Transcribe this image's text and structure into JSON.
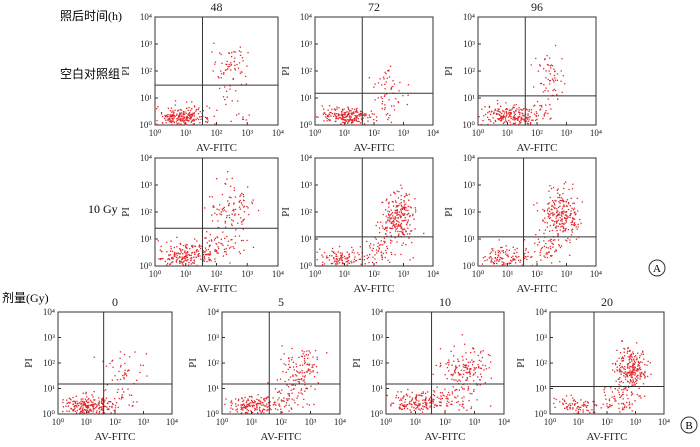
{
  "figure": {
    "row_header": "照后时间(h)",
    "dose_header": "剂量(Gy)",
    "panel_a_label": "A",
    "panel_b_label": "B",
    "colors": {
      "dots": "#e0262a",
      "axes": "#333333",
      "quadrant": "#333333"
    }
  },
  "chart_data": [
    {
      "type": "scatter",
      "panel": "A",
      "row_label": "空白对照组",
      "title": "48",
      "xlabel": "AV-FITC",
      "ylabel": "PI",
      "xscale": "log",
      "yscale": "log",
      "xlim": [
        1,
        10000
      ],
      "ylim": [
        1,
        10000
      ],
      "xticks": [
        "10^0",
        "10^1",
        "10^2",
        "10^3",
        "10^4"
      ],
      "yticks": [
        "10^0",
        "10^1",
        "10^2",
        "10^3",
        "10^4"
      ],
      "quadrant": {
        "x": 35,
        "y": 30
      },
      "clusters": [
        {
          "cx": 8,
          "cy": 2,
          "sx": 0.45,
          "sy": 0.18,
          "n": 230
        },
        {
          "cx": 300,
          "cy": 120,
          "sx": 0.3,
          "sy": 0.5,
          "n": 70
        },
        {
          "cx": 600,
          "cy": 2.5,
          "sx": 0.3,
          "sy": 0.25,
          "n": 10
        }
      ]
    },
    {
      "type": "scatter",
      "panel": "A",
      "row_label": "空白对照组",
      "title": "72",
      "xlabel": "AV-FITC",
      "ylabel": "PI",
      "xscale": "log",
      "yscale": "log",
      "xlim": [
        1,
        10000
      ],
      "ylim": [
        1,
        10000
      ],
      "xticks": [
        "10^0",
        "10^1",
        "10^2",
        "10^3",
        "10^4"
      ],
      "yticks": [
        "10^0",
        "10^1",
        "10^2",
        "10^3",
        "10^4"
      ],
      "quadrant": {
        "x": 40,
        "y": 15
      },
      "clusters": [
        {
          "cx": 12,
          "cy": 2,
          "sx": 0.45,
          "sy": 0.18,
          "n": 220
        },
        {
          "cx": 300,
          "cy": 30,
          "sx": 0.3,
          "sy": 0.45,
          "n": 45
        },
        {
          "cx": 300,
          "cy": 3,
          "sx": 0.3,
          "sy": 0.25,
          "n": 15
        }
      ]
    },
    {
      "type": "scatter",
      "panel": "A",
      "row_label": "空白对照组",
      "title": "96",
      "xlabel": "AV-FITC",
      "ylabel": "PI",
      "xscale": "log",
      "yscale": "log",
      "xlim": [
        1,
        10000
      ],
      "ylim": [
        1,
        10000
      ],
      "xticks": [
        "10^0",
        "10^1",
        "10^2",
        "10^3",
        "10^4"
      ],
      "yticks": [
        "10^0",
        "10^1",
        "10^2",
        "10^3",
        "10^4"
      ],
      "quadrant": {
        "x": 40,
        "y": 12
      },
      "clusters": [
        {
          "cx": 12,
          "cy": 2.2,
          "sx": 0.45,
          "sy": 0.2,
          "n": 220
        },
        {
          "cx": 300,
          "cy": 60,
          "sx": 0.3,
          "sy": 0.45,
          "n": 55
        },
        {
          "cx": 200,
          "cy": 4,
          "sx": 0.35,
          "sy": 0.25,
          "n": 20
        }
      ]
    },
    {
      "type": "scatter",
      "panel": "A",
      "row_label": "10 Gy",
      "title": "",
      "xlabel": "AV-FITC",
      "ylabel": "PI",
      "xscale": "log",
      "yscale": "log",
      "xlim": [
        1,
        10000
      ],
      "ylim": [
        1,
        10000
      ],
      "xticks": [
        "10^0",
        "10^1",
        "10^2",
        "10^3",
        "10^4"
      ],
      "yticks": [
        "10^0",
        "10^1",
        "10^2",
        "10^3",
        "10^4"
      ],
      "quadrant": {
        "x": 35,
        "y": 25
      },
      "clusters": [
        {
          "cx": 10,
          "cy": 2.5,
          "sx": 0.45,
          "sy": 0.22,
          "n": 200
        },
        {
          "cx": 300,
          "cy": 120,
          "sx": 0.35,
          "sy": 0.5,
          "n": 100
        },
        {
          "cx": 150,
          "cy": 6,
          "sx": 0.35,
          "sy": 0.3,
          "n": 60
        }
      ]
    },
    {
      "type": "scatter",
      "panel": "A",
      "row_label": "10 Gy",
      "title": "",
      "xlabel": "AV-FITC",
      "ylabel": "PI",
      "xscale": "log",
      "yscale": "log",
      "xlim": [
        1,
        10000
      ],
      "ylim": [
        1,
        10000
      ],
      "xticks": [
        "10^0",
        "10^1",
        "10^2",
        "10^3",
        "10^4"
      ],
      "yticks": [
        "10^0",
        "10^1",
        "10^2",
        "10^3",
        "10^4"
      ],
      "quadrant": {
        "x": 40,
        "y": 12
      },
      "clusters": [
        {
          "cx": 8,
          "cy": 2,
          "sx": 0.4,
          "sy": 0.2,
          "n": 110
        },
        {
          "cx": 700,
          "cy": 60,
          "sx": 0.3,
          "sy": 0.45,
          "n": 230
        },
        {
          "cx": 200,
          "cy": 4,
          "sx": 0.35,
          "sy": 0.3,
          "n": 60
        }
      ]
    },
    {
      "type": "scatter",
      "panel": "A",
      "row_label": "10 Gy",
      "title": "",
      "xlabel": "AV-FITC",
      "ylabel": "PI",
      "xscale": "log",
      "yscale": "log",
      "xlim": [
        1,
        10000
      ],
      "ylim": [
        1,
        10000
      ],
      "xticks": [
        "10^0",
        "10^1",
        "10^2",
        "10^3",
        "10^4"
      ],
      "yticks": [
        "10^0",
        "10^1",
        "10^2",
        "10^3",
        "10^4"
      ],
      "quadrant": {
        "x": 35,
        "y": 12
      },
      "clusters": [
        {
          "cx": 8,
          "cy": 2,
          "sx": 0.4,
          "sy": 0.2,
          "n": 110
        },
        {
          "cx": 700,
          "cy": 80,
          "sx": 0.3,
          "sy": 0.45,
          "n": 230
        },
        {
          "cx": 200,
          "cy": 4,
          "sx": 0.35,
          "sy": 0.3,
          "n": 60
        }
      ]
    },
    {
      "type": "scatter",
      "panel": "B",
      "title": "0",
      "xlabel": "AV-FITC",
      "ylabel": "PI",
      "xscale": "log",
      "yscale": "log",
      "xlim": [
        1,
        10000
      ],
      "ylim": [
        1,
        10000
      ],
      "xticks": [
        "10^0",
        "10^1",
        "10^2",
        "10^3",
        "10^4"
      ],
      "yticks": [
        "10^0",
        "10^1",
        "10^2",
        "10^3",
        "10^4"
      ],
      "quadrant": {
        "x": 40,
        "y": 15
      },
      "clusters": [
        {
          "cx": 10,
          "cy": 2,
          "sx": 0.45,
          "sy": 0.2,
          "n": 230
        },
        {
          "cx": 200,
          "cy": 50,
          "sx": 0.35,
          "sy": 0.45,
          "n": 45
        },
        {
          "cx": 200,
          "cy": 4,
          "sx": 0.3,
          "sy": 0.25,
          "n": 15
        }
      ]
    },
    {
      "type": "scatter",
      "panel": "B",
      "title": "5",
      "xlabel": "AV-FITC",
      "ylabel": "PI",
      "xscale": "log",
      "yscale": "log",
      "xlim": [
        1,
        10000
      ],
      "ylim": [
        1,
        10000
      ],
      "xticks": [
        "10^0",
        "10^1",
        "10^2",
        "10^3",
        "10^4"
      ],
      "yticks": [
        "10^0",
        "10^1",
        "10^2",
        "10^3",
        "10^4"
      ],
      "quadrant": {
        "x": 40,
        "y": 15
      },
      "clusters": [
        {
          "cx": 12,
          "cy": 2,
          "sx": 0.45,
          "sy": 0.2,
          "n": 170
        },
        {
          "cx": 400,
          "cy": 60,
          "sx": 0.35,
          "sy": 0.45,
          "n": 110
        },
        {
          "cx": 200,
          "cy": 4,
          "sx": 0.35,
          "sy": 0.3,
          "n": 50
        }
      ]
    },
    {
      "type": "scatter",
      "panel": "B",
      "title": "10",
      "xlabel": "AV-FITC",
      "ylabel": "PI",
      "xscale": "log",
      "yscale": "log",
      "xlim": [
        1,
        10000
      ],
      "ylim": [
        1,
        10000
      ],
      "xticks": [
        "10^0",
        "10^1",
        "10^2",
        "10^3",
        "10^4"
      ],
      "yticks": [
        "10^0",
        "10^1",
        "10^2",
        "10^3",
        "10^4"
      ],
      "quadrant": {
        "x": 35,
        "y": 15
      },
      "clusters": [
        {
          "cx": 10,
          "cy": 2.5,
          "sx": 0.45,
          "sy": 0.2,
          "n": 150
        },
        {
          "cx": 500,
          "cy": 60,
          "sx": 0.35,
          "sy": 0.45,
          "n": 150
        },
        {
          "cx": 150,
          "cy": 4,
          "sx": 0.4,
          "sy": 0.3,
          "n": 70
        }
      ]
    },
    {
      "type": "scatter",
      "panel": "B",
      "title": "20",
      "xlabel": "AV-FITC",
      "ylabel": "PI",
      "xscale": "log",
      "yscale": "log",
      "xlim": [
        1,
        10000
      ],
      "ylim": [
        1,
        10000
      ],
      "xticks": [
        "10^0",
        "10^1",
        "10^2",
        "10^3",
        "10^4"
      ],
      "yticks": [
        "10^0",
        "10^1",
        "10^2",
        "10^3",
        "10^4"
      ],
      "quadrant": {
        "x": 35,
        "y": 12
      },
      "clusters": [
        {
          "cx": 8,
          "cy": 2,
          "sx": 0.4,
          "sy": 0.2,
          "n": 90
        },
        {
          "cx": 700,
          "cy": 60,
          "sx": 0.3,
          "sy": 0.45,
          "n": 230
        },
        {
          "cx": 250,
          "cy": 4,
          "sx": 0.35,
          "sy": 0.3,
          "n": 70
        }
      ]
    }
  ]
}
